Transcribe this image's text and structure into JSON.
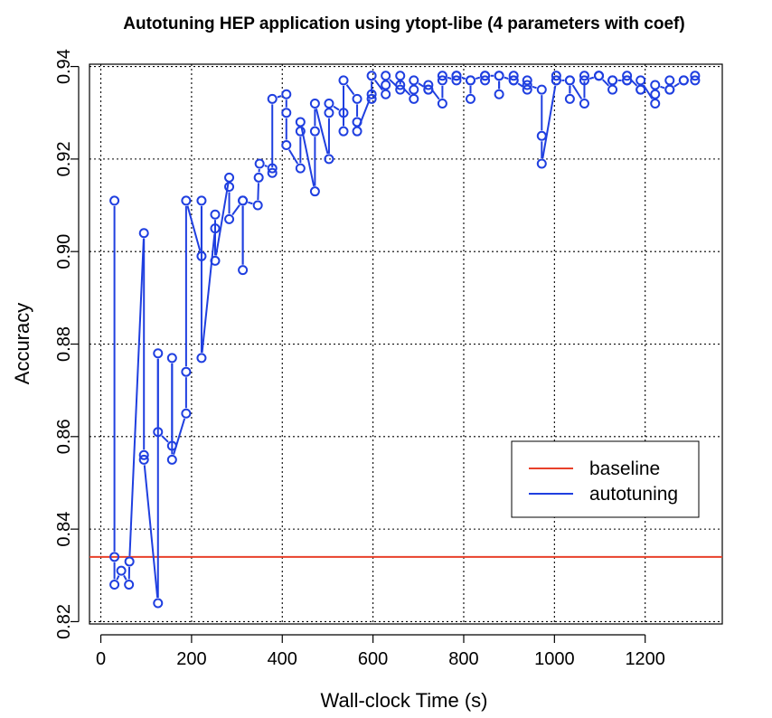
{
  "chart_data": {
    "type": "line",
    "title": "Autotuning HEP application using ytopt-libe (4 parameters with coef)",
    "xlabel": "Wall-clock Time (s)",
    "ylabel": "Accuracy",
    "xlim": [
      -25,
      1370
    ],
    "ylim": [
      0.8195,
      0.9405
    ],
    "x_ticks": [
      0,
      200,
      400,
      600,
      800,
      1000,
      1200
    ],
    "x_tick_labels": [
      "0",
      "200",
      "400",
      "600",
      "800",
      "1000",
      "1200"
    ],
    "y_ticks": [
      0.82,
      0.84,
      0.86,
      0.88,
      0.9,
      0.92,
      0.94
    ],
    "y_tick_labels": [
      "0.82",
      "0.84",
      "0.86",
      "0.88",
      "0.90",
      "0.92",
      "0.94"
    ],
    "grid": true,
    "legend": {
      "placement": "bottom-right",
      "entries": [
        {
          "label": "baseline",
          "color": "#e8402a"
        },
        {
          "label": "autotuning",
          "color": "#1f3fe0"
        }
      ]
    },
    "series": [
      {
        "name": "baseline",
        "type": "hline",
        "color": "#e8402a",
        "y": 0.834
      },
      {
        "name": "autotuning",
        "type": "line",
        "color": "#1f3fe0",
        "points": [
          [
            30,
            0.911
          ],
          [
            30,
            0.834
          ],
          [
            30,
            0.828
          ],
          [
            45,
            0.831
          ],
          [
            62,
            0.828
          ],
          [
            63,
            0.833
          ],
          [
            95,
            0.904
          ],
          [
            95,
            0.856
          ],
          [
            95,
            0.855
          ],
          [
            126,
            0.824
          ],
          [
            126,
            0.878
          ],
          [
            126,
            0.861
          ],
          [
            157,
            0.858
          ],
          [
            157,
            0.877
          ],
          [
            157,
            0.855
          ],
          [
            188,
            0.865
          ],
          [
            188,
            0.874
          ],
          [
            188,
            0.911
          ],
          [
            222,
            0.899
          ],
          [
            222,
            0.911
          ],
          [
            222,
            0.877
          ],
          [
            252,
            0.905
          ],
          [
            252,
            0.908
          ],
          [
            252,
            0.898
          ],
          [
            283,
            0.916
          ],
          [
            283,
            0.914
          ],
          [
            283,
            0.907
          ],
          [
            313,
            0.911
          ],
          [
            313,
            0.896
          ],
          [
            313,
            0.911
          ],
          [
            346,
            0.91
          ],
          [
            348,
            0.916
          ],
          [
            350,
            0.919
          ],
          [
            378,
            0.918
          ],
          [
            378,
            0.917
          ],
          [
            378,
            0.933
          ],
          [
            409,
            0.934
          ],
          [
            409,
            0.93
          ],
          [
            409,
            0.923
          ],
          [
            440,
            0.918
          ],
          [
            440,
            0.926
          ],
          [
            440,
            0.928
          ],
          [
            472,
            0.913
          ],
          [
            472,
            0.926
          ],
          [
            472,
            0.932
          ],
          [
            503,
            0.92
          ],
          [
            503,
            0.93
          ],
          [
            503,
            0.932
          ],
          [
            535,
            0.93
          ],
          [
            535,
            0.926
          ],
          [
            535,
            0.937
          ],
          [
            565,
            0.933
          ],
          [
            565,
            0.928
          ],
          [
            565,
            0.926
          ],
          [
            597,
            0.934
          ],
          [
            597,
            0.933
          ],
          [
            597,
            0.938
          ],
          [
            628,
            0.934
          ],
          [
            628,
            0.936
          ],
          [
            628,
            0.938
          ],
          [
            660,
            0.935
          ],
          [
            660,
            0.938
          ],
          [
            660,
            0.936
          ],
          [
            690,
            0.933
          ],
          [
            690,
            0.935
          ],
          [
            690,
            0.937
          ],
          [
            722,
            0.935
          ],
          [
            722,
            0.935
          ],
          [
            722,
            0.936
          ],
          [
            753,
            0.932
          ],
          [
            753,
            0.937
          ],
          [
            753,
            0.938
          ],
          [
            784,
            0.937
          ],
          [
            784,
            0.938
          ],
          [
            784,
            0.938
          ],
          [
            815,
            0.937
          ],
          [
            815,
            0.933
          ],
          [
            815,
            0.937
          ],
          [
            847,
            0.938
          ],
          [
            847,
            0.937
          ],
          [
            847,
            0.938
          ],
          [
            878,
            0.938
          ],
          [
            878,
            0.934
          ],
          [
            878,
            0.938
          ],
          [
            910,
            0.937
          ],
          [
            910,
            0.938
          ],
          [
            910,
            0.937
          ],
          [
            940,
            0.935
          ],
          [
            940,
            0.937
          ],
          [
            940,
            0.936
          ],
          [
            972,
            0.935
          ],
          [
            972,
            0.925
          ],
          [
            972,
            0.919
          ],
          [
            1004,
            0.937
          ],
          [
            1004,
            0.938
          ],
          [
            1004,
            0.937
          ],
          [
            1034,
            0.937
          ],
          [
            1034,
            0.933
          ],
          [
            1034,
            0.937
          ],
          [
            1066,
            0.932
          ],
          [
            1066,
            0.938
          ],
          [
            1066,
            0.937
          ],
          [
            1098,
            0.938
          ],
          [
            1098,
            0.938
          ],
          [
            1098,
            0.938
          ],
          [
            1128,
            0.935
          ],
          [
            1128,
            0.937
          ],
          [
            1128,
            0.937
          ],
          [
            1160,
            0.937
          ],
          [
            1160,
            0.937
          ],
          [
            1160,
            0.938
          ],
          [
            1190,
            0.935
          ],
          [
            1190,
            0.935
          ],
          [
            1190,
            0.937
          ],
          [
            1222,
            0.932
          ],
          [
            1222,
            0.934
          ],
          [
            1222,
            0.936
          ],
          [
            1254,
            0.935
          ],
          [
            1254,
            0.937
          ],
          [
            1254,
            0.935
          ],
          [
            1285,
            0.937
          ],
          [
            1285,
            0.937
          ],
          [
            1310,
            0.937
          ],
          [
            1310,
            0.938
          ]
        ]
      }
    ]
  }
}
